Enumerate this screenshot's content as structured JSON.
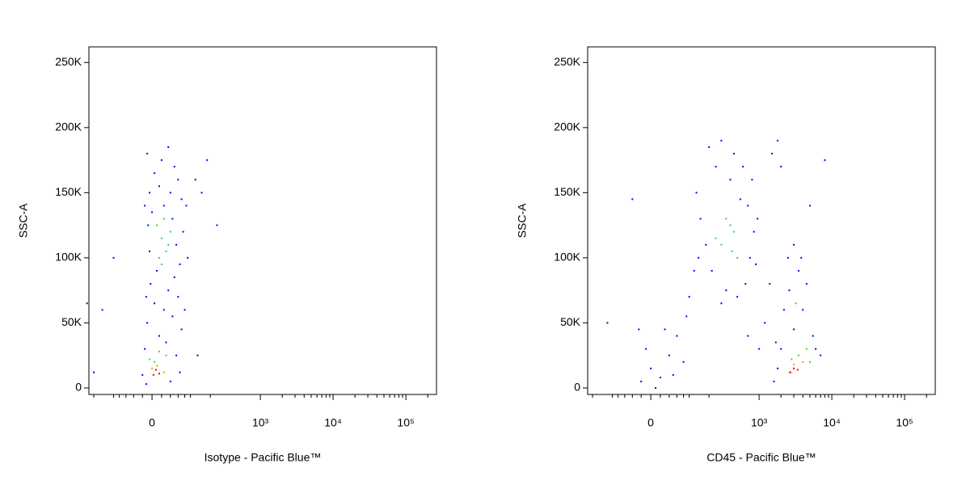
{
  "chart_data": [
    {
      "type": "scatter",
      "xlabel": "Isotype - Pacific Blue™",
      "ylabel": "SSC-A",
      "xscale": "biexponential",
      "xlim": [
        -235,
        263600
      ],
      "ylim": [
        -5000,
        262000
      ],
      "xticks": [
        0,
        {
          "value": 1000,
          "label": "10³"
        },
        {
          "value": 10000,
          "label": "10⁴"
        },
        {
          "value": 100000,
          "label": "10⁵"
        }
      ],
      "xminorticks": [
        -200,
        -100,
        -80,
        -60,
        -40,
        -20,
        20,
        40,
        60,
        80,
        100,
        200,
        2000,
        3000,
        4000,
        5000,
        6000,
        7000,
        8000,
        9000,
        20000,
        30000,
        40000,
        50000,
        60000,
        70000,
        80000,
        90000,
        200000
      ],
      "yticks": [
        0,
        {
          "value": 50000,
          "label": "50K"
        },
        {
          "value": 100000,
          "label": "100K"
        },
        {
          "value": 150000,
          "label": "150K"
        },
        {
          "value": 200000,
          "label": "200K"
        },
        {
          "value": 250000,
          "label": "250K"
        }
      ],
      "series": [
        {
          "color": "#0000ff",
          "x": [
            -10,
            20,
            35,
            5,
            50,
            15,
            -5,
            40,
            60,
            25,
            70,
            0,
            45,
            -8,
            75,
            55,
            -5,
            65,
            10,
            50,
            -3,
            35,
            60,
            5,
            25,
            45,
            -10,
            70,
            15,
            30,
            -15,
            55,
            -20,
            65,
            40,
            -12,
            120,
            180,
            150,
            250,
            -150,
            -100,
            -250,
            130,
            -200,
            85,
            90,
            80,
            -15,
            -12
          ],
          "y": [
            180000,
            175000,
            185000,
            165000,
            170000,
            155000,
            150000,
            150000,
            160000,
            140000,
            145000,
            135000,
            130000,
            125000,
            120000,
            110000,
            105000,
            95000,
            90000,
            85000,
            80000,
            75000,
            70000,
            65000,
            60000,
            55000,
            50000,
            45000,
            40000,
            35000,
            30000,
            25000,
            10000,
            12000,
            5000,
            3000,
            160000,
            175000,
            150000,
            125000,
            60000,
            100000,
            65000,
            25000,
            12000,
            140000,
            100000,
            60000,
            140000,
            70000
          ]
        },
        {
          "color": "#22dd55",
          "x": [
            20,
            30,
            10,
            40,
            15,
            35,
            25,
            5,
            30,
            15,
            -5,
            20
          ],
          "y": [
            115000,
            105000,
            125000,
            120000,
            100000,
            110000,
            130000,
            20000,
            25000,
            28000,
            22000,
            95000
          ]
        },
        {
          "color": "#ff9900",
          "x": [
            10,
            25,
            0
          ],
          "y": [
            17000,
            12000,
            15000
          ]
        },
        {
          "color": "#ff0000",
          "x": [
            8,
            15,
            3
          ],
          "y": [
            14000,
            11000,
            10000
          ]
        }
      ]
    },
    {
      "type": "scatter",
      "xlabel": "CD45 - Pacific Blue™",
      "ylabel": "SSC-A",
      "xscale": "biexponential",
      "xlim": [
        -235,
        263600
      ],
      "ylim": [
        -5000,
        262000
      ],
      "xticks": [
        0,
        {
          "value": 1000,
          "label": "10³"
        },
        {
          "value": 10000,
          "label": "10⁴"
        },
        {
          "value": 100000,
          "label": "10⁵"
        }
      ],
      "xminorticks": [
        -200,
        -100,
        -80,
        -60,
        -40,
        -20,
        20,
        40,
        60,
        80,
        100,
        200,
        2000,
        3000,
        4000,
        5000,
        6000,
        7000,
        8000,
        9000,
        20000,
        30000,
        40000,
        50000,
        60000,
        70000,
        80000,
        90000,
        200000
      ],
      "yticks": [
        0,
        {
          "value": 50000,
          "label": "50K"
        },
        {
          "value": 100000,
          "label": "100K"
        },
        {
          "value": 150000,
          "label": "150K"
        },
        {
          "value": 200000,
          "label": "200K"
        },
        {
          "value": 250000,
          "label": "250K"
        }
      ],
      "series": [
        {
          "color": "#0000ff",
          "x": [
            130,
            200,
            300,
            450,
            600,
            800,
            150,
            250,
            700,
            850,
            180,
            900,
            350,
            500,
            650,
            220,
            750,
            140,
            400,
            550,
            300,
            950,
            -20,
            0,
            20,
            40,
            60,
            -10,
            80,
            10,
            30,
            -25,
            90,
            50,
            1200,
            1000,
            700,
            1500,
            1800,
            2000,
            2500,
            1400,
            120,
            100,
            -40,
            -120,
            1600,
            2000,
            3000,
            4000,
            4500,
            3500,
            2600,
            5500,
            6000,
            7000,
            1800,
            2200,
            5000,
            3000,
            8000,
            3800,
            1700
          ],
          "y": [
            150000,
            185000,
            190000,
            180000,
            170000,
            160000,
            130000,
            170000,
            140000,
            120000,
            110000,
            95000,
            75000,
            70000,
            80000,
            90000,
            100000,
            100000,
            160000,
            145000,
            65000,
            130000,
            5000,
            15000,
            8000,
            25000,
            40000,
            30000,
            20000,
            0,
            45000,
            45000,
            55000,
            10000,
            50000,
            30000,
            40000,
            180000,
            190000,
            170000,
            100000,
            80000,
            90000,
            70000,
            145000,
            50000,
            5000,
            30000,
            45000,
            60000,
            80000,
            90000,
            75000,
            40000,
            30000,
            25000,
            15000,
            60000,
            140000,
            110000,
            175000,
            100000,
            35000
          ]
        },
        {
          "color": "#22dd55",
          "x": [
            350,
            450,
            300,
            500,
            400,
            250,
            420,
            3500,
            4500,
            2800,
            5000,
            3200
          ],
          "y": [
            130000,
            120000,
            110000,
            100000,
            125000,
            115000,
            105000,
            25000,
            30000,
            22000,
            20000,
            65000
          ]
        },
        {
          "color": "#ff9900",
          "x": [
            3000,
            4000,
            2600
          ],
          "y": [
            18000,
            20000,
            12000
          ]
        },
        {
          "color": "#ff0000",
          "x": [
            3000,
            2700,
            3400
          ],
          "y": [
            15000,
            12000,
            14000
          ]
        }
      ]
    }
  ]
}
